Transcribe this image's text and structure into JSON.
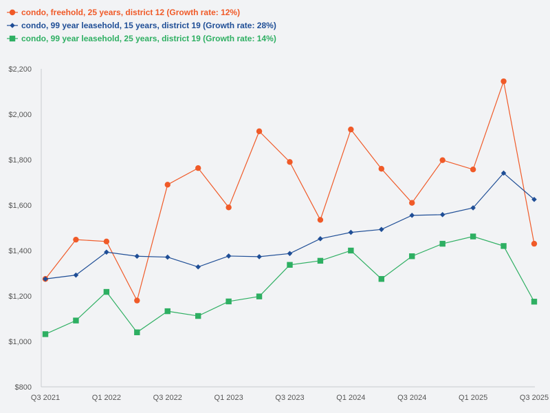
{
  "chart_data": {
    "type": "line",
    "title": "",
    "xlabel": "",
    "ylabel": "",
    "ylim": [
      800,
      2200
    ],
    "yticks": [
      800,
      1000,
      1200,
      1400,
      1600,
      1800,
      2000,
      2200
    ],
    "ytick_labels": [
      "$800",
      "$1,000",
      "$1,200",
      "$1,400",
      "$1,600",
      "$1,800",
      "$2,000",
      "$2,200"
    ],
    "categories": [
      "Q3 2021",
      "Q4 2021",
      "Q1 2022",
      "Q2 2022",
      "Q3 2022",
      "Q4 2022",
      "Q1 2023",
      "Q2 2023",
      "Q3 2023",
      "Q4 2023",
      "Q1 2024",
      "Q2 2024",
      "Q3 2024",
      "Q4 2024",
      "Q1 2025",
      "Q2 2025",
      "Q3 2025"
    ],
    "xtick_labels": [
      "Q3 2021",
      "Q1 2022",
      "Q3 2022",
      "Q1 2023",
      "Q3 2023",
      "Q1 2024",
      "Q3 2024",
      "Q1 2025",
      "Q3 2025"
    ],
    "legend_position": "top-left",
    "grid": false,
    "series": [
      {
        "name": "condo, freehold, 25 years, district 12 (Growth rate: 12%)",
        "color": "#f05a28",
        "marker": "circle",
        "values": [
          1275,
          1448,
          1440,
          1180,
          1690,
          1763,
          1590,
          1925,
          1790,
          1535,
          1933,
          1760,
          1610,
          1798,
          1757,
          2145,
          1430
        ]
      },
      {
        "name": "condo, 99 year leasehold, 15 years, district 19 (Growth rate: 28%)",
        "color": "#1f4e96",
        "marker": "diamond",
        "values": [
          1275,
          1292,
          1393,
          1375,
          1371,
          1328,
          1376,
          1373,
          1387,
          1452,
          1480,
          1493,
          1555,
          1558,
          1588,
          1741,
          1625
        ]
      },
      {
        "name": "condo, 99 year leasehold, 25 years, district 19 (Growth rate: 14%)",
        "color": "#2eaf62",
        "marker": "square",
        "values": [
          1032,
          1092,
          1218,
          1040,
          1133,
          1112,
          1176,
          1198,
          1337,
          1355,
          1400,
          1275,
          1375,
          1430,
          1462,
          1420,
          1175
        ]
      }
    ]
  }
}
